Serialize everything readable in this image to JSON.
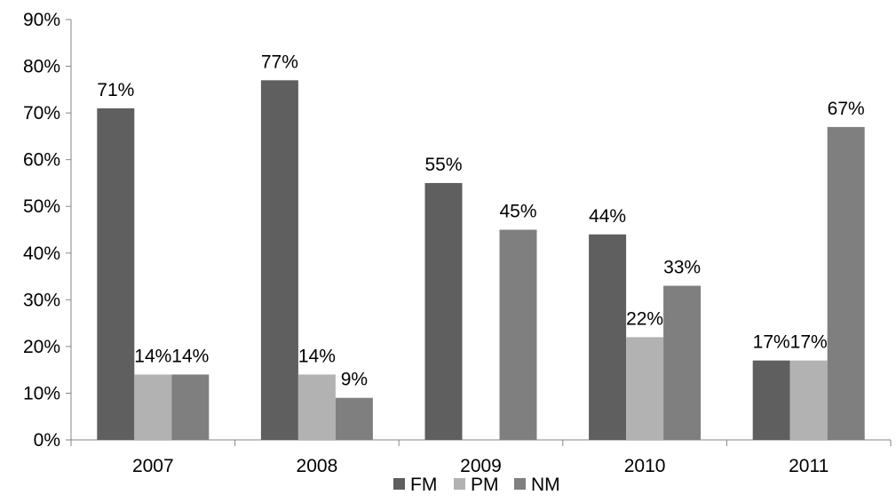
{
  "chart_data": {
    "type": "bar",
    "categories": [
      "2007",
      "2008",
      "2009",
      "2010",
      "2011"
    ],
    "series": [
      {
        "name": "FM",
        "values": [
          71,
          77,
          55,
          44,
          17
        ],
        "labels": [
          "71%",
          "77%",
          "55%",
          "44%",
          "17%"
        ],
        "color": "#5f5f5f"
      },
      {
        "name": "PM",
        "values": [
          14,
          14,
          0,
          22,
          17
        ],
        "labels": [
          "14%",
          "14%",
          "",
          "22%",
          "17%"
        ],
        "color": "#b2b2b2"
      },
      {
        "name": "NM",
        "values": [
          14,
          9,
          45,
          33,
          67
        ],
        "labels": [
          "14%",
          "9%",
          "45%",
          "33%",
          "67%"
        ],
        "color": "#7f7f7f"
      }
    ],
    "ylim": [
      0,
      90
    ],
    "yticks": [
      0,
      10,
      20,
      30,
      40,
      50,
      60,
      70,
      80,
      90
    ],
    "ytick_labels": [
      "0%",
      "10%",
      "20%",
      "30%",
      "40%",
      "50%",
      "60%",
      "70%",
      "80%",
      "90%"
    ],
    "title": "",
    "xlabel": "",
    "ylabel": "",
    "grid": false,
    "legend_position": "bottom"
  }
}
